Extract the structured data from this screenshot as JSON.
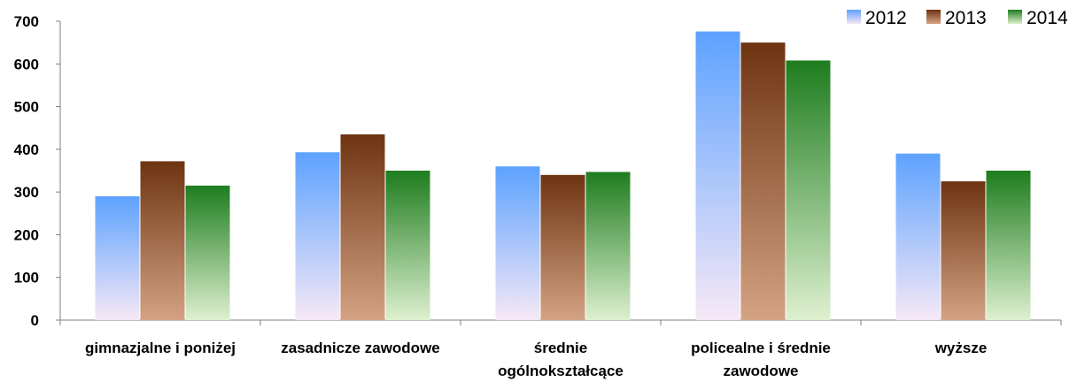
{
  "chart_data": {
    "type": "bar",
    "title": "",
    "xlabel": "",
    "ylabel": "",
    "ylim": [
      0,
      700
    ],
    "yticks": [
      "0",
      "100",
      "200",
      "300",
      "400",
      "500",
      "600",
      "700"
    ],
    "grid": false,
    "legend_position": "top-right",
    "categories": [
      [
        "gimnazjalne i poniżej"
      ],
      [
        "zasadnicze zawodowe"
      ],
      [
        "średnie",
        "ogólnokształcące"
      ],
      [
        "policealne i średnie",
        "zawodowe"
      ],
      [
        "wyższe"
      ]
    ],
    "series": [
      {
        "name": "2012",
        "values": [
          290,
          393,
          360,
          676,
          390
        ]
      },
      {
        "name": "2013",
        "values": [
          372,
          435,
          340,
          650,
          325
        ]
      },
      {
        "name": "2014",
        "values": [
          315,
          350,
          347,
          608,
          350
        ]
      }
    ]
  },
  "colors": {
    "2012": [
      "#5da2ff",
      "#f6e8f6"
    ],
    "2013": [
      "#6e3412",
      "#d4a383"
    ],
    "2014": [
      "#1e7d1e",
      "#def0d0"
    ],
    "axis": "#7f7f7f"
  }
}
